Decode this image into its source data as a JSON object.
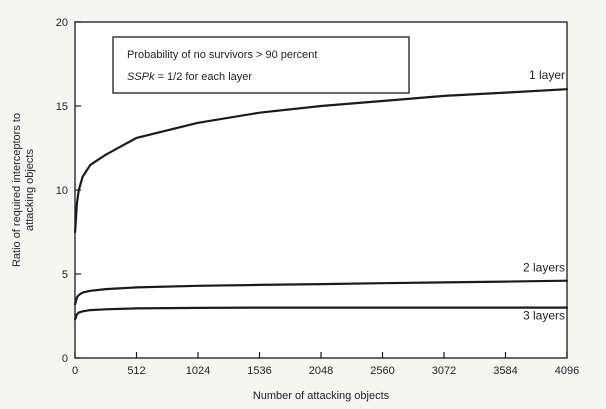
{
  "chart_data": {
    "type": "line",
    "xlabel": "Number of attacking objects",
    "ylabel_lines": [
      "Ratio of required interceptors to",
      "attacking objects"
    ],
    "xlim": [
      0,
      4096
    ],
    "ylim": [
      0,
      20
    ],
    "x_ticks": [
      0,
      512,
      1024,
      1536,
      2048,
      2560,
      3072,
      3584,
      4096
    ],
    "y_ticks": [
      0,
      5,
      10,
      15,
      20
    ],
    "grid": false,
    "annotation": {
      "line1": "Probability of no survivors > 90 percent",
      "line2_italic": "SSPk",
      "line2_rest": " = 1/2 for each layer"
    },
    "series": [
      {
        "name": "1 layer",
        "x": [
          1,
          16,
          32,
          64,
          128,
          256,
          512,
          1024,
          1536,
          2048,
          2560,
          3072,
          3584,
          4096
        ],
        "y": [
          7.5,
          9.2,
          10.0,
          10.8,
          11.5,
          12.1,
          13.1,
          14.0,
          14.6,
          15.0,
          15.3,
          15.6,
          15.8,
          16.0
        ]
      },
      {
        "name": "2 layers",
        "x": [
          1,
          16,
          32,
          64,
          128,
          256,
          512,
          1024,
          1536,
          2048,
          2560,
          3072,
          3584,
          4096
        ],
        "y": [
          3.2,
          3.6,
          3.75,
          3.9,
          4.0,
          4.1,
          4.2,
          4.3,
          4.35,
          4.4,
          4.45,
          4.5,
          4.55,
          4.6
        ]
      },
      {
        "name": "3 layers",
        "x": [
          1,
          16,
          32,
          64,
          128,
          256,
          512,
          1024,
          1536,
          2048,
          2560,
          3072,
          3584,
          4096
        ],
        "y": [
          2.3,
          2.6,
          2.7,
          2.78,
          2.85,
          2.9,
          2.95,
          2.98,
          3.0,
          3.0,
          3.0,
          3.0,
          3.0,
          3.0
        ]
      }
    ]
  }
}
